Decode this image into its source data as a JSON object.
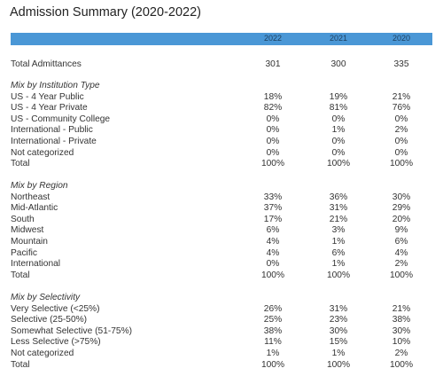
{
  "title": "Admission Summary (2020-2022)",
  "years": [
    "2022",
    "2021",
    "2020"
  ],
  "colors": {
    "header_bar": "#4a97d6"
  },
  "total_admittances": {
    "label": "Total Admittances",
    "values": [
      "301",
      "300",
      "335"
    ]
  },
  "sections": [
    {
      "heading": "Mix by Institution Type",
      "rows": [
        {
          "label": "US - 4 Year Public",
          "values": [
            "18%",
            "19%",
            "21%"
          ]
        },
        {
          "label": "US - 4 Year Private",
          "values": [
            "82%",
            "81%",
            "76%"
          ]
        },
        {
          "label": "US - Community College",
          "values": [
            "0%",
            "0%",
            "0%"
          ]
        },
        {
          "label": "International - Public",
          "values": [
            "0%",
            "1%",
            "2%"
          ]
        },
        {
          "label": "International - Private",
          "values": [
            "0%",
            "0%",
            "0%"
          ]
        },
        {
          "label": "Not categorized",
          "values": [
            "0%",
            "0%",
            "0%"
          ]
        },
        {
          "label": "Total",
          "values": [
            "100%",
            "100%",
            "100%"
          ]
        }
      ]
    },
    {
      "heading": "Mix by Region",
      "rows": [
        {
          "label": "Northeast",
          "values": [
            "33%",
            "36%",
            "30%"
          ]
        },
        {
          "label": "Mid-Atlantic",
          "values": [
            "37%",
            "31%",
            "29%"
          ]
        },
        {
          "label": "South",
          "values": [
            "17%",
            "21%",
            "20%"
          ]
        },
        {
          "label": "Midwest",
          "values": [
            "6%",
            "3%",
            "9%"
          ]
        },
        {
          "label": "Mountain",
          "values": [
            "4%",
            "1%",
            "6%"
          ]
        },
        {
          "label": "Pacific",
          "values": [
            "4%",
            "6%",
            "4%"
          ]
        },
        {
          "label": "International",
          "values": [
            "0%",
            "1%",
            "2%"
          ]
        },
        {
          "label": "Total",
          "values": [
            "100%",
            "100%",
            "100%"
          ]
        }
      ]
    },
    {
      "heading": "Mix by Selectivity",
      "rows": [
        {
          "label": "Very Selective (<25%)",
          "values": [
            "26%",
            "31%",
            "21%"
          ]
        },
        {
          "label": "Selective (25-50%)",
          "values": [
            "25%",
            "23%",
            "38%"
          ]
        },
        {
          "label": "Somewhat Selective (51-75%)",
          "values": [
            "38%",
            "30%",
            "30%"
          ]
        },
        {
          "label": "Less Selective (>75%)",
          "values": [
            "11%",
            "15%",
            "10%"
          ]
        },
        {
          "label": "Not categorized",
          "values": [
            "1%",
            "1%",
            "2%"
          ]
        },
        {
          "label": "Total",
          "values": [
            "100%",
            "100%",
            "100%"
          ]
        }
      ]
    }
  ]
}
